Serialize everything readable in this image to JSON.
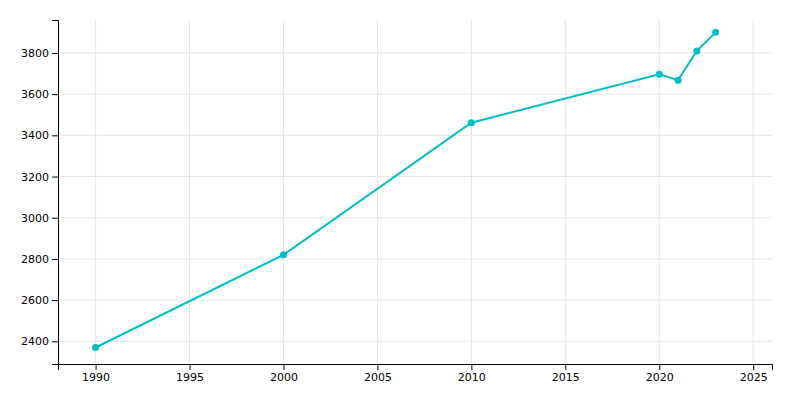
{
  "chart_data": {
    "type": "line",
    "x": [
      1990,
      2000,
      2010,
      2020,
      2021,
      2022,
      2023
    ],
    "values": [
      2370,
      2820,
      3461,
      3697,
      3668,
      3810,
      3900
    ],
    "color": "#00BEC8",
    "marker": "circle",
    "xlim": [
      1988,
      2026
    ],
    "ylim": [
      2290,
      3960
    ],
    "xticks": [
      1990,
      1995,
      2000,
      2005,
      2010,
      2015,
      2020,
      2025
    ],
    "yticks": [
      2400,
      2600,
      2800,
      3000,
      3200,
      3400,
      3600,
      3800
    ],
    "grid": true
  }
}
